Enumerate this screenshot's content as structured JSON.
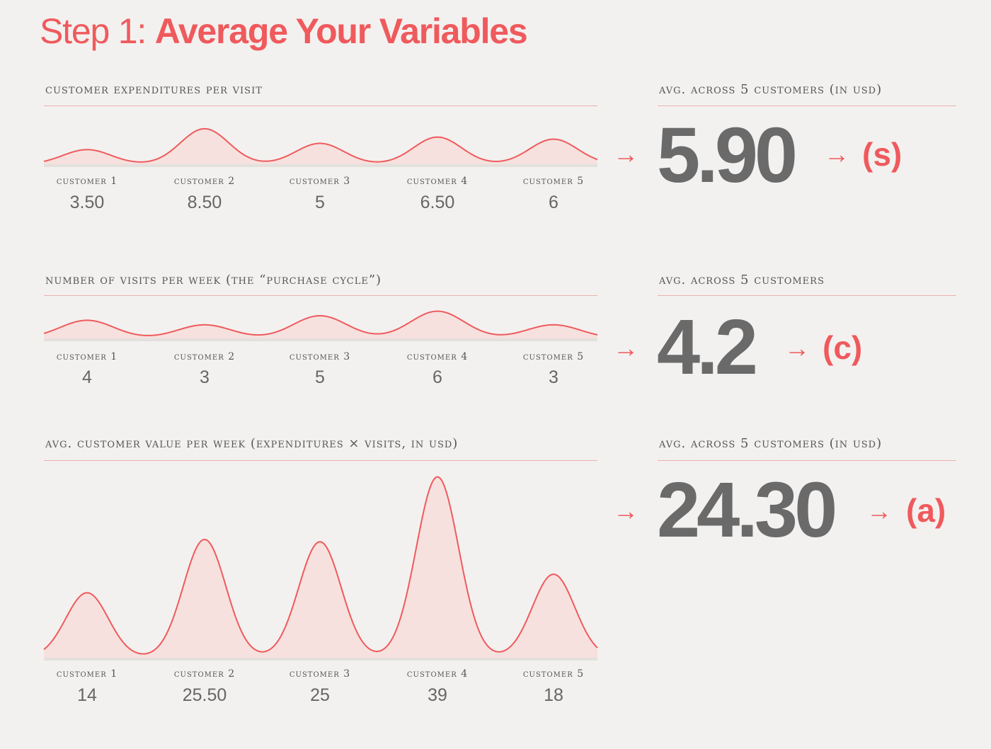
{
  "title": {
    "prefix": "Step 1:",
    "main": "Average Your Variables"
  },
  "colors": {
    "accent": "#ef5a5d",
    "fill": "#f6e1de",
    "rule": "#eab1ab",
    "number": "#6a6a6a"
  },
  "arrow_symbol": "→",
  "sections": [
    {
      "label": "customer expenditures per visit",
      "avg_label": "avg. across 5 customers (in usd)",
      "avg_value": "5.90",
      "tag": "(s)"
    },
    {
      "label": "number of visits per week (the “purchase cycle”)",
      "avg_label": "avg. across 5 customers",
      "avg_value": "4.2",
      "tag": "(c)"
    },
    {
      "label": "avg. customer value per week (expenditures × visits, in usd)",
      "avg_label": "avg. across 5 customers (in usd)",
      "avg_value": "24.30",
      "tag": "(a)"
    }
  ],
  "chart_data": [
    {
      "type": "area",
      "title": "customer expenditures per visit",
      "categories": [
        "customer 1",
        "customer 2",
        "customer 3",
        "customer 4",
        "customer 5"
      ],
      "values": [
        3.5,
        8.5,
        5,
        6.5,
        6
      ],
      "value_labels": [
        "3.50",
        "8.50",
        "5",
        "6.50",
        "6"
      ],
      "ylim": [
        0,
        40
      ]
    },
    {
      "type": "area",
      "title": "number of visits per week (the “purchase cycle”)",
      "categories": [
        "customer 1",
        "customer 2",
        "customer 3",
        "customer 4",
        "customer 5"
      ],
      "values": [
        4,
        3,
        5,
        6,
        3
      ],
      "value_labels": [
        "4",
        "3",
        "5",
        "6",
        "3"
      ],
      "ylim": [
        0,
        40
      ]
    },
    {
      "type": "area",
      "title": "avg. customer value per week (expenditures × visits, in usd)",
      "categories": [
        "customer 1",
        "customer 2",
        "customer 3",
        "customer 4",
        "customer 5"
      ],
      "values": [
        14,
        25.5,
        25,
        39,
        18
      ],
      "value_labels": [
        "14",
        "25.50",
        "25",
        "39",
        "18"
      ],
      "ylim": [
        0,
        40
      ]
    }
  ]
}
